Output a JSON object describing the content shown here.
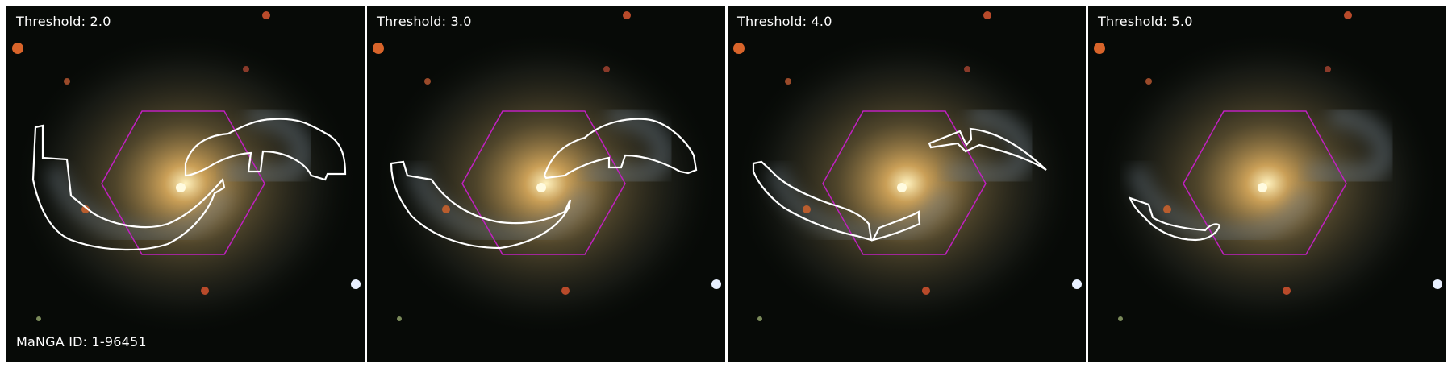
{
  "figure": {
    "panels": [
      {
        "label": "Threshold: 2.0"
      },
      {
        "label": "Threshold: 3.0"
      },
      {
        "label": "Threshold: 4.0"
      },
      {
        "label": "Threshold: 5.0"
      }
    ],
    "manga_id": "MaNGA ID: 1-96451",
    "colors": {
      "hexagon": "#c020c0",
      "contour": "#ffffff",
      "background": "#070a07",
      "galaxy_core": "#fff0b0"
    }
  }
}
